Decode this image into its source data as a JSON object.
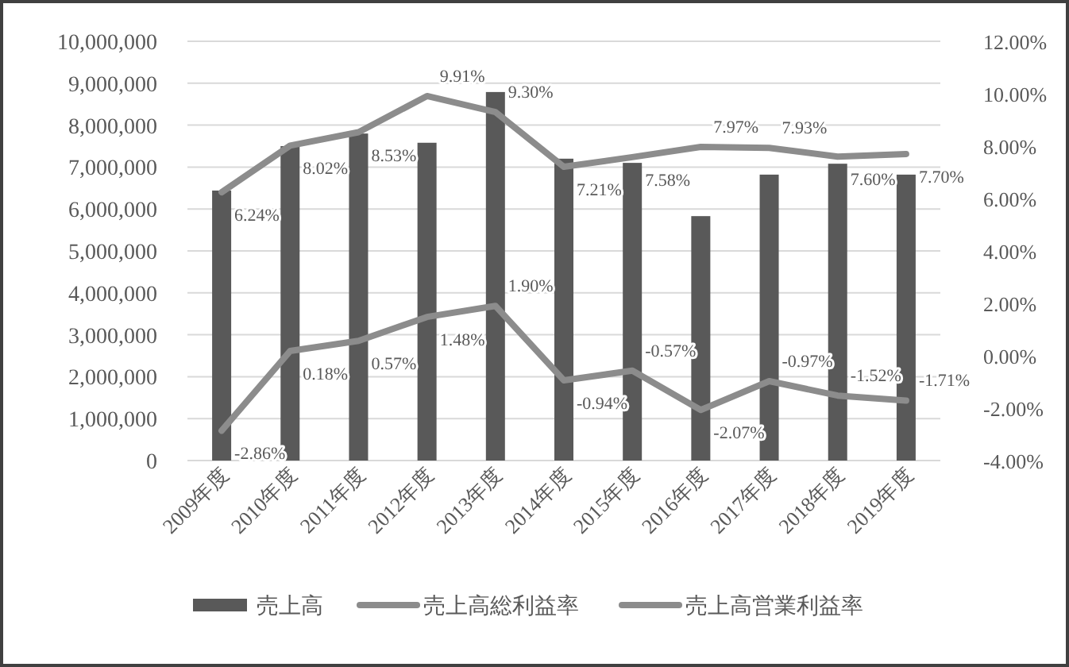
{
  "chart_data": {
    "type": "bar",
    "categories": [
      "2009年度",
      "2010年度",
      "2011年度",
      "2012年度",
      "2013年度",
      "2014年度",
      "2015年度",
      "2016年度",
      "2017年度",
      "2018年度",
      "2019年度"
    ],
    "series": [
      {
        "name": "売上高",
        "color": "#595959",
        "values": [
          6440000,
          7500000,
          7800000,
          7580000,
          8790000,
          7200000,
          7100000,
          5830000,
          6820000,
          7080000,
          6820000
        ]
      },
      {
        "name": "売上高総利益率",
        "type": "line",
        "axis": "y2",
        "color": "#8c8c8c",
        "values": [
          6.24,
          8.02,
          8.53,
          9.91,
          9.3,
          7.21,
          7.58,
          7.97,
          7.93,
          7.6,
          7.7
        ],
        "value_labels": [
          "6.24%",
          "8.02%",
          "8.53%",
          "9.91%",
          "9.30%",
          "7.21%",
          "7.58%",
          "7.97%",
          "7.93%",
          "7.60%",
          "7.70%"
        ]
      },
      {
        "name": "売上高営業利益率",
        "type": "line",
        "axis": "y2",
        "color": "#8c8c8c",
        "values": [
          -2.86,
          0.18,
          0.57,
          1.48,
          1.9,
          -0.94,
          -0.57,
          -2.07,
          -0.97,
          -1.52,
          -1.71
        ],
        "value_labels": [
          "-2.86%",
          "0.18%",
          "0.57%",
          "1.48%",
          "1.90%",
          "-0.94%",
          "-0.57%",
          "-2.07%",
          "-0.97%",
          "-1.52%",
          "-1.71%"
        ]
      }
    ],
    "ylim": [
      0,
      10000000
    ],
    "yticks": [
      0,
      {
        "value": 1000000,
        "label": "1,000,000"
      },
      {
        "value": 2000000,
        "label": "2,000,000"
      },
      {
        "value": 3000000,
        "label": "3,000,000"
      },
      {
        "value": 4000000,
        "label": "4,000,000"
      },
      {
        "value": 5000000,
        "label": "5,000,000"
      },
      {
        "value": 6000000,
        "label": "6,000,000"
      },
      {
        "value": 7000000,
        "label": "7,000,000"
      },
      {
        "value": 8000000,
        "label": "8,000,000"
      },
      {
        "value": 9000000,
        "label": "9,000,000"
      },
      {
        "value": 10000000,
        "label": "10,000,000"
      }
    ],
    "y2lim": [
      -4,
      12
    ],
    "y2ticks": [
      {
        "value": -4,
        "label": "-4.00%"
      },
      {
        "value": -2,
        "label": "-2.00%"
      },
      {
        "value": 0,
        "label": "0.00%"
      },
      {
        "value": 2,
        "label": "2.00%"
      },
      {
        "value": 4,
        "label": "4.00%"
      },
      {
        "value": 6,
        "label": "6.00%"
      },
      {
        "value": 8,
        "label": "8.00%"
      },
      {
        "value": 10,
        "label": "10.00%"
      },
      {
        "value": 12,
        "label": "12.00%"
      }
    ],
    "grid": "y",
    "legend": "bottom",
    "marker": "none",
    "line_style": "solid"
  }
}
